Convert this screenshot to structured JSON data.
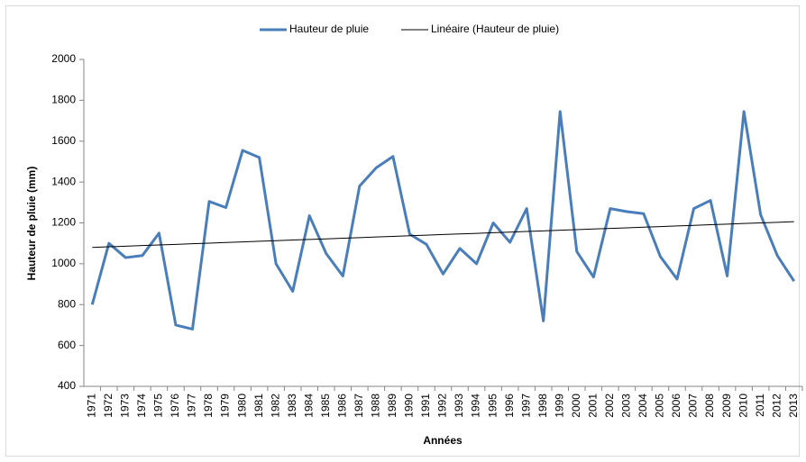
{
  "chart_data": {
    "type": "line",
    "x_label": "Années",
    "y_label": "Hauteur de pluie (mm)",
    "categories": [
      "1971",
      "1972",
      "1973",
      "1974",
      "1975",
      "1976",
      "1977",
      "1978",
      "1979",
      "1980",
      "1981",
      "1982",
      "1983",
      "1984",
      "1985",
      "1986",
      "1987",
      "1988",
      "1989",
      "1990",
      "1991",
      "1992",
      "1993",
      "1994",
      "1995",
      "1996",
      "1997",
      "1998",
      "1999",
      "2000",
      "2001",
      "2002",
      "2003",
      "2004",
      "2005",
      "2006",
      "2007",
      "2008",
      "2009",
      "2010",
      "2011",
      "2012",
      "2013"
    ],
    "series": [
      {
        "name": "Hauteur de pluie",
        "color": "#4a7ebb",
        "values": [
          800,
          1100,
          1030,
          1040,
          1150,
          700,
          680,
          1305,
          1275,
          1555,
          1520,
          1000,
          865,
          1235,
          1050,
          940,
          1380,
          1470,
          1525,
          1145,
          1095,
          950,
          1075,
          1000,
          1200,
          1105,
          1270,
          720,
          1745,
          1060,
          935,
          1270,
          1255,
          1245,
          1035,
          925,
          1270,
          1310,
          940,
          1745,
          1240,
          1040,
          915
        ]
      },
      {
        "name": "Linéaire (Hauteur de pluie)",
        "color": "#000000",
        "values": [
          1080,
          1083,
          1086,
          1089,
          1092,
          1095,
          1098,
          1101,
          1104,
          1107,
          1110,
          1113,
          1116,
          1119,
          1122,
          1125,
          1128,
          1131,
          1134,
          1137,
          1140,
          1143,
          1146,
          1149,
          1152,
          1155,
          1158,
          1161,
          1164,
          1167,
          1170,
          1173,
          1176,
          1179,
          1182,
          1185,
          1188,
          1191,
          1194,
          1197,
          1200,
          1203,
          1206
        ]
      }
    ],
    "ylim": [
      400,
      2000
    ],
    "yticks": [
      400,
      600,
      800,
      1000,
      1200,
      1400,
      1600,
      1800,
      2000
    ],
    "grid": false,
    "legend": "top"
  }
}
